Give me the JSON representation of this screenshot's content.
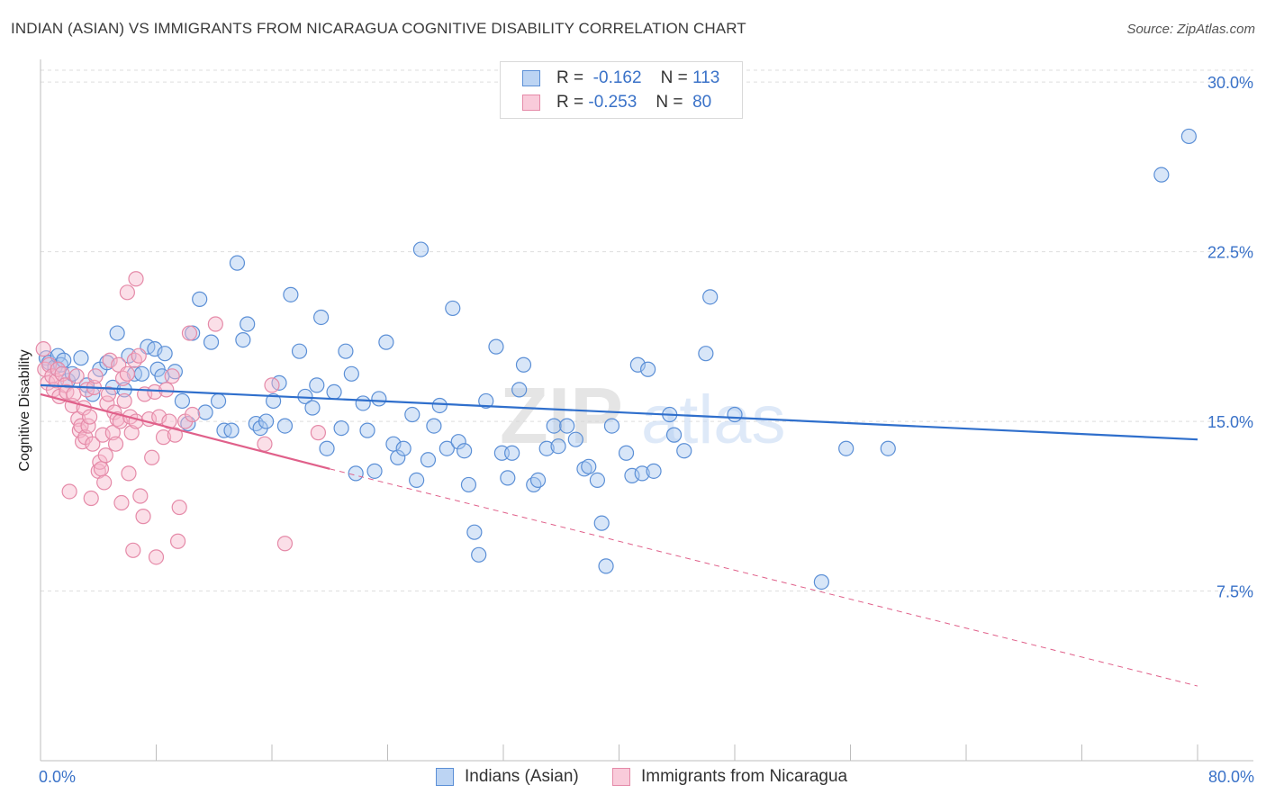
{
  "header": {
    "title": "INDIAN (ASIAN) VS IMMIGRANTS FROM NICARAGUA COGNITIVE DISABILITY CORRELATION CHART",
    "source": "Source: ZipAtlas.com"
  },
  "watermark": {
    "part1": "ZIP",
    "part2": "atlas"
  },
  "legend": {
    "rows": [
      {
        "r_label": "R =",
        "r_value": "-0.162",
        "n_label": "N =",
        "n_value": "113"
      },
      {
        "r_label": "R =",
        "r_value": "-0.253",
        "n_label": "N =",
        "n_value": "80"
      }
    ]
  },
  "bottom_legend": [
    "Indians (Asian)",
    "Immigrants from Nicaragua"
  ],
  "colors": {
    "blue_fill": "#a9c8ef",
    "blue_stroke": "#5b8fd6",
    "blue_line": "#2f6fcc",
    "pink_fill": "#f6b8cb",
    "pink_stroke": "#e58aa8",
    "pink_line": "#e0608a",
    "tick_label": "#3a72c8",
    "grid": "#dedede"
  },
  "chart_data": {
    "type": "scatter",
    "title": "INDIAN (ASIAN) VS IMMIGRANTS FROM NICARAGUA COGNITIVE DISABILITY CORRELATION CHART",
    "xlabel": "",
    "ylabel": "Cognitive Disability",
    "xlim": [
      0,
      80
    ],
    "ylim": [
      0,
      31
    ],
    "x_tick_labels": [
      "0.0%",
      "80.0%"
    ],
    "y_ticks": [
      7.5,
      15.0,
      22.5,
      30.0
    ],
    "y_tick_labels": [
      "7.5%",
      "15.0%",
      "22.5%",
      "30.0%"
    ],
    "grid": true,
    "legend_position": "top-center",
    "series": [
      {
        "name": "Indians (Asian)",
        "color": "#5b8fd6",
        "trend": {
          "x": [
            0,
            80
          ],
          "y": [
            16.6,
            14.2
          ]
        },
        "points": [
          [
            0.4,
            17.8
          ],
          [
            0.6,
            17.6
          ],
          [
            1.0,
            17.4
          ],
          [
            1.2,
            17.9
          ],
          [
            1.4,
            17.5
          ],
          [
            1.6,
            17.7
          ],
          [
            1.9,
            16.8
          ],
          [
            2.2,
            17.1
          ],
          [
            2.8,
            17.8
          ],
          [
            3.2,
            16.6
          ],
          [
            3.6,
            16.2
          ],
          [
            4.1,
            17.3
          ],
          [
            4.6,
            17.6
          ],
          [
            5.0,
            16.5
          ],
          [
            5.3,
            18.9
          ],
          [
            5.8,
            16.4
          ],
          [
            6.1,
            17.9
          ],
          [
            6.5,
            17.1
          ],
          [
            7.0,
            17.1
          ],
          [
            7.4,
            18.3
          ],
          [
            7.9,
            18.2
          ],
          [
            8.1,
            17.3
          ],
          [
            8.4,
            17.0
          ],
          [
            8.6,
            18.0
          ],
          [
            9.3,
            17.2
          ],
          [
            9.8,
            15.9
          ],
          [
            10.2,
            14.9
          ],
          [
            10.5,
            18.9
          ],
          [
            11.0,
            20.4
          ],
          [
            11.4,
            15.4
          ],
          [
            11.8,
            18.5
          ],
          [
            12.3,
            15.9
          ],
          [
            12.7,
            14.6
          ],
          [
            13.2,
            14.6
          ],
          [
            13.6,
            22.0
          ],
          [
            14.0,
            18.6
          ],
          [
            14.3,
            19.3
          ],
          [
            14.9,
            14.9
          ],
          [
            15.2,
            14.7
          ],
          [
            15.6,
            15.0
          ],
          [
            16.1,
            15.9
          ],
          [
            16.5,
            16.7
          ],
          [
            16.9,
            14.8
          ],
          [
            17.3,
            20.6
          ],
          [
            17.9,
            18.1
          ],
          [
            18.3,
            16.1
          ],
          [
            18.8,
            15.6
          ],
          [
            19.1,
            16.6
          ],
          [
            19.4,
            19.6
          ],
          [
            19.8,
            13.8
          ],
          [
            20.3,
            16.3
          ],
          [
            20.8,
            14.7
          ],
          [
            21.1,
            18.1
          ],
          [
            21.5,
            17.1
          ],
          [
            21.8,
            12.7
          ],
          [
            22.3,
            15.8
          ],
          [
            22.6,
            14.6
          ],
          [
            23.1,
            12.8
          ],
          [
            23.4,
            16.0
          ],
          [
            23.9,
            18.5
          ],
          [
            24.4,
            14.0
          ],
          [
            24.7,
            13.4
          ],
          [
            25.1,
            13.8
          ],
          [
            25.7,
            15.3
          ],
          [
            26.0,
            12.4
          ],
          [
            26.3,
            22.6
          ],
          [
            26.8,
            13.3
          ],
          [
            27.2,
            14.8
          ],
          [
            27.6,
            15.7
          ],
          [
            28.1,
            13.8
          ],
          [
            28.5,
            20.0
          ],
          [
            28.9,
            14.1
          ],
          [
            29.3,
            13.7
          ],
          [
            29.6,
            12.2
          ],
          [
            30.0,
            10.1
          ],
          [
            30.3,
            9.1
          ],
          [
            30.8,
            15.9
          ],
          [
            31.5,
            18.3
          ],
          [
            31.9,
            13.6
          ],
          [
            32.3,
            12.5
          ],
          [
            32.6,
            13.6
          ],
          [
            33.1,
            16.4
          ],
          [
            33.4,
            17.5
          ],
          [
            34.1,
            12.2
          ],
          [
            34.4,
            12.4
          ],
          [
            35.0,
            13.8
          ],
          [
            35.5,
            14.8
          ],
          [
            35.8,
            13.9
          ],
          [
            36.4,
            14.8
          ],
          [
            37.0,
            14.2
          ],
          [
            37.6,
            12.9
          ],
          [
            37.9,
            13.0
          ],
          [
            38.5,
            12.4
          ],
          [
            38.8,
            10.5
          ],
          [
            39.1,
            8.6
          ],
          [
            39.5,
            14.8
          ],
          [
            40.5,
            13.6
          ],
          [
            40.9,
            12.6
          ],
          [
            41.3,
            17.5
          ],
          [
            41.6,
            12.7
          ],
          [
            42.4,
            12.8
          ],
          [
            43.5,
            15.3
          ],
          [
            43.8,
            14.4
          ],
          [
            44.5,
            13.7
          ],
          [
            46.0,
            18.0
          ],
          [
            46.3,
            20.5
          ],
          [
            54.0,
            7.9
          ],
          [
            55.7,
            13.8
          ],
          [
            58.6,
            13.8
          ],
          [
            48.0,
            15.3
          ],
          [
            77.5,
            25.9
          ],
          [
            79.4,
            27.6
          ],
          [
            42.0,
            17.3
          ]
        ]
      },
      {
        "name": "Immigrants from Nicaragua",
        "color": "#e58aa8",
        "trend": {
          "x": [
            0,
            20
          ],
          "y": [
            16.2,
            12.9
          ]
        },
        "trend_dashed": {
          "x": [
            20,
            80
          ],
          "y": [
            12.9,
            3.3
          ]
        },
        "points": [
          [
            0.2,
            18.2
          ],
          [
            0.3,
            17.3
          ],
          [
            0.5,
            16.7
          ],
          [
            0.6,
            17.5
          ],
          [
            0.8,
            17.0
          ],
          [
            0.9,
            16.4
          ],
          [
            1.1,
            16.8
          ],
          [
            1.2,
            17.3
          ],
          [
            1.3,
            16.1
          ],
          [
            1.5,
            17.1
          ],
          [
            1.7,
            16.6
          ],
          [
            1.8,
            16.3
          ],
          [
            2.0,
            11.9
          ],
          [
            2.2,
            15.7
          ],
          [
            2.3,
            16.2
          ],
          [
            2.5,
            17.0
          ],
          [
            2.6,
            15.1
          ],
          [
            2.7,
            14.6
          ],
          [
            2.8,
            14.8
          ],
          [
            2.9,
            14.1
          ],
          [
            3.0,
            15.6
          ],
          [
            3.1,
            14.3
          ],
          [
            3.2,
            16.4
          ],
          [
            3.3,
            14.8
          ],
          [
            3.4,
            15.2
          ],
          [
            3.5,
            11.6
          ],
          [
            3.6,
            14.0
          ],
          [
            3.7,
            16.5
          ],
          [
            3.8,
            17.0
          ],
          [
            4.0,
            12.8
          ],
          [
            4.1,
            13.2
          ],
          [
            4.2,
            12.9
          ],
          [
            4.3,
            14.4
          ],
          [
            4.4,
            12.3
          ],
          [
            4.5,
            13.5
          ],
          [
            4.6,
            15.8
          ],
          [
            4.7,
            16.2
          ],
          [
            4.8,
            17.7
          ],
          [
            5.0,
            14.5
          ],
          [
            5.1,
            15.4
          ],
          [
            5.2,
            14.0
          ],
          [
            5.3,
            15.1
          ],
          [
            5.4,
            17.5
          ],
          [
            5.5,
            15.0
          ],
          [
            5.6,
            11.4
          ],
          [
            5.7,
            16.9
          ],
          [
            5.8,
            15.9
          ],
          [
            6.0,
            17.1
          ],
          [
            6.1,
            12.7
          ],
          [
            6.2,
            15.2
          ],
          [
            6.3,
            14.5
          ],
          [
            6.4,
            9.3
          ],
          [
            6.5,
            17.7
          ],
          [
            6.6,
            15.0
          ],
          [
            6.8,
            17.9
          ],
          [
            6.9,
            11.7
          ],
          [
            7.1,
            10.8
          ],
          [
            7.2,
            16.2
          ],
          [
            7.5,
            15.1
          ],
          [
            7.7,
            13.4
          ],
          [
            7.9,
            16.3
          ],
          [
            8.0,
            9.0
          ],
          [
            8.2,
            15.2
          ],
          [
            8.5,
            14.3
          ],
          [
            8.7,
            16.4
          ],
          [
            8.9,
            15.0
          ],
          [
            9.1,
            17.0
          ],
          [
            9.3,
            14.4
          ],
          [
            9.5,
            9.7
          ],
          [
            9.6,
            11.2
          ],
          [
            10.0,
            15.0
          ],
          [
            10.3,
            18.9
          ],
          [
            10.5,
            15.3
          ],
          [
            6.0,
            20.7
          ],
          [
            6.6,
            21.3
          ],
          [
            12.1,
            19.3
          ],
          [
            16.0,
            16.6
          ],
          [
            16.9,
            9.6
          ],
          [
            19.2,
            14.5
          ],
          [
            15.5,
            14.0
          ]
        ]
      }
    ]
  }
}
